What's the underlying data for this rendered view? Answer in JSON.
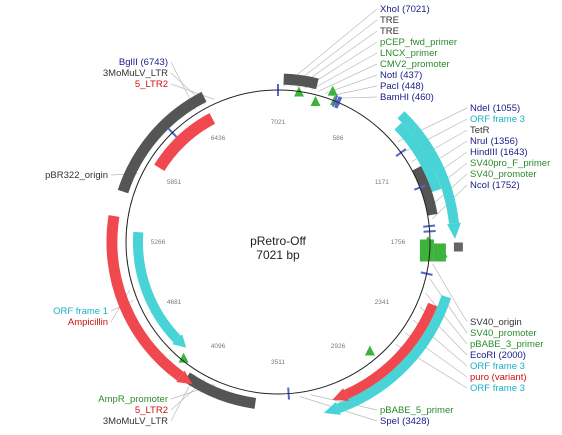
{
  "plasmid": {
    "name": "pRetro-Off",
    "length_label": "7021 bp",
    "length_bp": 7021
  },
  "colors": {
    "backbone": "#333333",
    "ltr": "#555555",
    "resistance": "#f0484f",
    "orf": "#48d4d6",
    "primer": "#3db23d",
    "site": "#5566cc",
    "label_blue": "#1a1a88",
    "label_green": "#2b8a2b",
    "label_cyan": "#1ab0c8",
    "label_red": "#cc1111",
    "label_dark": "#333333",
    "leader": "#bbbbbb"
  },
  "ticks": [
    "7021",
    "586",
    "1171",
    "1756",
    "2341",
    "2926",
    "3511",
    "4096",
    "4681",
    "5266",
    "5851",
    "6436"
  ],
  "labels": {
    "top": [
      {
        "text": "XhoI (7021)",
        "color": "label_blue"
      },
      {
        "text": "TRE",
        "color": "label_dark"
      },
      {
        "text": "TRE",
        "color": "label_dark"
      },
      {
        "text": "pCEP_fwd_primer",
        "color": "label_green"
      },
      {
        "text": "LNCX_primer",
        "color": "label_green"
      },
      {
        "text": "CMV2_promoter",
        "color": "label_green"
      },
      {
        "text": "NotI (437)",
        "color": "label_blue"
      },
      {
        "text": "PacI (448)",
        "color": "label_blue"
      },
      {
        "text": "BamHI (460)",
        "color": "label_blue"
      }
    ],
    "right_upper": [
      {
        "text": "NdeI (1055)",
        "color": "label_blue"
      },
      {
        "text": "ORF frame 3",
        "color": "label_cyan"
      },
      {
        "text": "TetR",
        "color": "label_dark"
      },
      {
        "text": "NruI (1356)",
        "color": "label_blue"
      },
      {
        "text": "HindIII (1643)",
        "color": "label_blue"
      },
      {
        "text": "SV40pro_F_primer",
        "color": "label_green"
      },
      {
        "text": "SV40_promoter",
        "color": "label_green"
      },
      {
        "text": "NcoI (1752)",
        "color": "label_blue"
      }
    ],
    "right_lower": [
      {
        "text": "SV40_origin",
        "color": "label_dark"
      },
      {
        "text": "SV40_promoter",
        "color": "label_green"
      },
      {
        "text": "pBABE_3_primer",
        "color": "label_green"
      },
      {
        "text": "EcoRI (2000)",
        "color": "label_blue"
      },
      {
        "text": "ORF frame 3",
        "color": "label_cyan"
      },
      {
        "text": "puro (variant)",
        "color": "label_red"
      },
      {
        "text": "ORF frame 3",
        "color": "label_cyan"
      }
    ],
    "bottom_center": [
      {
        "text": "pBABE_5_primer",
        "color": "label_green"
      },
      {
        "text": "SpeI (3428)",
        "color": "label_blue"
      }
    ],
    "bottom_left": [
      {
        "text": "AmpR_promoter",
        "color": "label_green"
      },
      {
        "text": "5_LTR2",
        "color": "label_red"
      },
      {
        "text": "3MoMuLV_LTR",
        "color": "label_dark"
      }
    ],
    "left_mid": [
      {
        "text": "ORF frame 1",
        "color": "label_cyan"
      },
      {
        "text": "Ampicillin",
        "color": "label_red"
      }
    ],
    "left": [
      {
        "text": "pBR322_origin",
        "color": "label_dark"
      }
    ],
    "top_left": [
      {
        "text": "BglII (6743)",
        "color": "label_blue"
      },
      {
        "text": "3MoMuLV_LTR",
        "color": "label_dark"
      },
      {
        "text": "5_LTR2",
        "color": "label_red"
      }
    ]
  }
}
